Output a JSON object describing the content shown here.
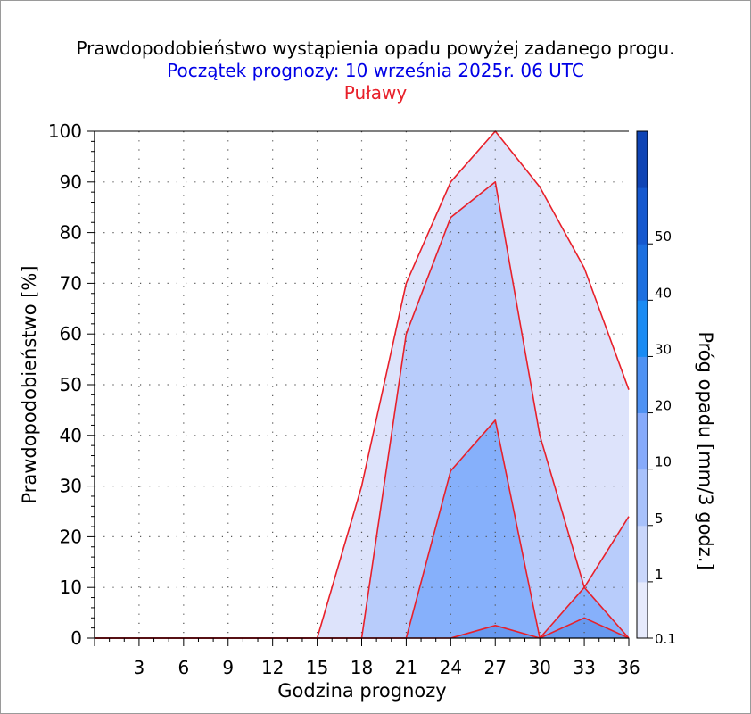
{
  "chart_data": {
    "type": "area",
    "title": "Prawdopodobieństwo wystąpienia opadu powyżej zadanego progu.",
    "subtitle": "Początek prognozy: 10 września 2025r. 06 UTC",
    "location": "Puławy",
    "xlabel": "Godzina prognozy",
    "ylabel": "Prawdopodobieństwo [%]",
    "colorbar_label": "Próg opadu [mm/3 godz.]",
    "xlim": [
      0,
      36
    ],
    "ylim": [
      0,
      100
    ],
    "x_ticks": [
      3,
      6,
      9,
      12,
      15,
      18,
      21,
      24,
      27,
      30,
      33,
      36
    ],
    "y_ticks": [
      0,
      10,
      20,
      30,
      40,
      50,
      60,
      70,
      80,
      90,
      100
    ],
    "x": [
      0,
      3,
      6,
      9,
      12,
      15,
      18,
      21,
      24,
      27,
      30,
      33,
      36
    ],
    "series": [
      {
        "threshold": "0.1",
        "color": "#dde3fb",
        "values": [
          0,
          0,
          0,
          0,
          0,
          0,
          30,
          70,
          90,
          100,
          89,
          73,
          49
        ]
      },
      {
        "threshold": "1",
        "color": "#b8ccfb",
        "values": [
          0,
          0,
          0,
          0,
          0,
          0,
          0,
          60,
          83,
          90,
          40,
          10,
          24
        ]
      },
      {
        "threshold": "5",
        "color": "#86b0fb",
        "values": [
          0,
          0,
          0,
          0,
          0,
          0,
          0,
          0,
          33,
          43,
          0,
          10,
          0
        ]
      },
      {
        "threshold": "10",
        "color": "#6699f0",
        "values": [
          0,
          0,
          0,
          0,
          0,
          0,
          0,
          0,
          0,
          2.5,
          0,
          4,
          0
        ]
      }
    ],
    "colorbar": {
      "tick_labels": [
        "0.1",
        "1",
        "5",
        "10",
        "20",
        "30",
        "40",
        "50"
      ],
      "colors": [
        "#e6eafc",
        "#c9d6fb",
        "#a8c1fb",
        "#86aafb",
        "#4f92f3",
        "#1a8bf3",
        "#1c6fe0",
        "#1558cf",
        "#0f44b5"
      ]
    },
    "line_color": "#e8202a",
    "grid": true
  }
}
